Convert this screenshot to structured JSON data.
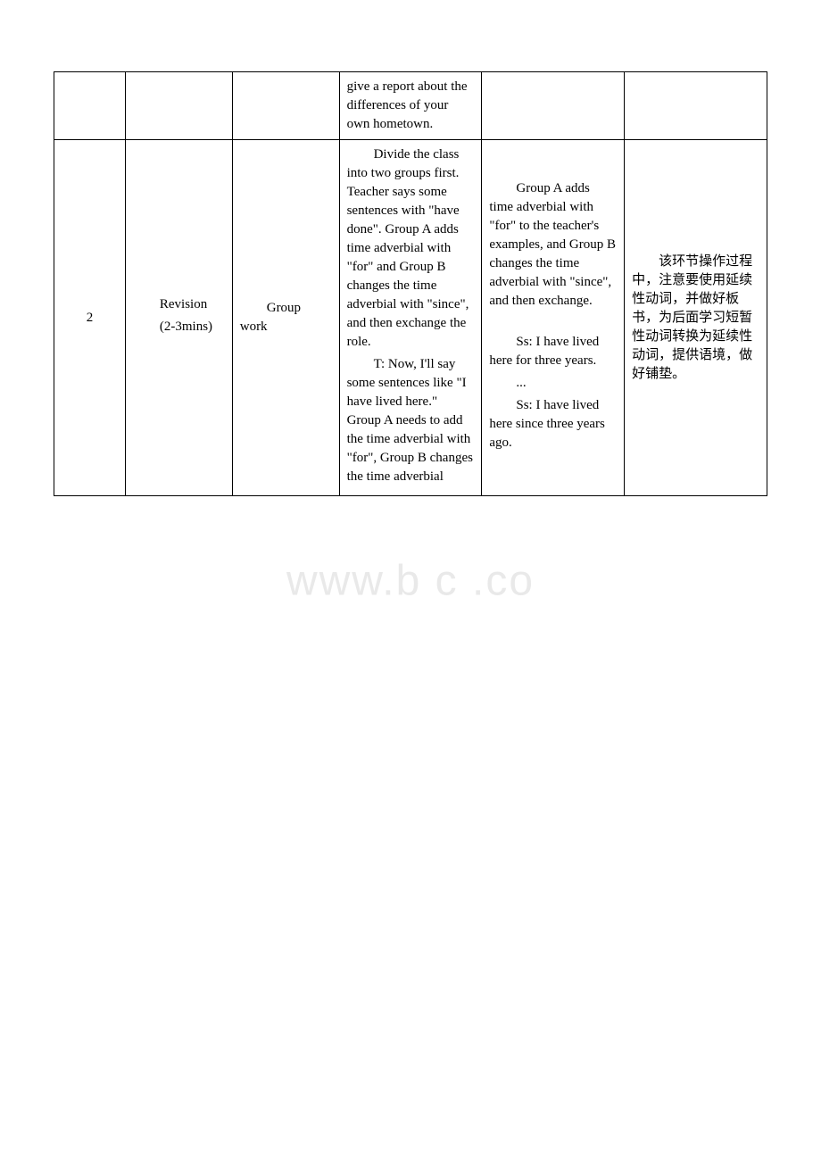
{
  "watermark": "www.b    c   .co",
  "rows": [
    {
      "col1": "",
      "col2": "",
      "col3": "",
      "col4": "give a report about the differences of your own hometown.",
      "col5": "",
      "col6": ""
    },
    {
      "col1": "2",
      "col2_line1": "Revision",
      "col2_line2": "(2-3mins)",
      "col3": "Group work",
      "col4_p1": "Divide the class into two groups first. Teacher says some sentences with \"have done\". Group A adds time adverbial with \"for\" and Group B changes the time adverbial with \"since\", and then exchange the role.",
      "col4_p2": "T: Now, I'll say some sentences like \"I have lived here.\" Group A needs to add the time adverbial with \"for\", Group B changes the time adverbial",
      "col5_p1": "Group A adds time adverbial with \"for\" to the teacher's examples, and Group B changes the time adverbial with \"since\", and then exchange.",
      "col5_p2": "Ss: I have lived here for three years.",
      "col5_p3": "...",
      "col5_p4": "Ss: I have lived here since three years ago.",
      "col6": "该环节操作过程中，注意要使用延续性动词，并做好板书，为后面学习短暂性动词转换为延续性动词，提供语境，做好铺垫。"
    }
  ]
}
